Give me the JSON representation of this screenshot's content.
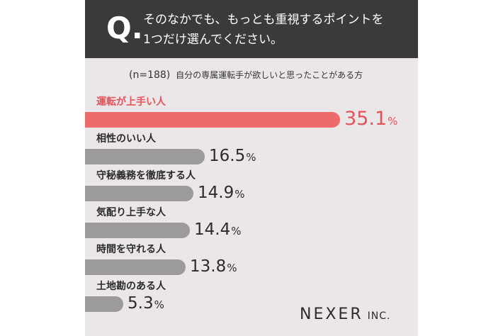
{
  "header": {
    "q_mark": "Q.",
    "question_line1": "そのなかでも、もっとも重視するポイントを",
    "question_line2": "1つだけ選んでください。"
  },
  "sample": {
    "n_label": "(n=188)",
    "description": "自分の専属運転手が欲しいと思ったことがある方"
  },
  "colors": {
    "highlight": "#ee6b6b",
    "bar": "#9c9a9b",
    "highlight_text": "#e3545a"
  },
  "chart_data": {
    "type": "bar",
    "orientation": "horizontal",
    "unit": "%",
    "categories": [
      "運転が上手い人",
      "相性のいい人",
      "守秘義務を徹底する人",
      "気配り上手な人",
      "時間を守れる人",
      "土地勘のある人"
    ],
    "values": [
      35.1,
      16.5,
      14.9,
      14.4,
      13.8,
      5.3
    ],
    "highlight_index": 0
  },
  "logo": {
    "name": "NEXER",
    "suffix": "INC."
  }
}
